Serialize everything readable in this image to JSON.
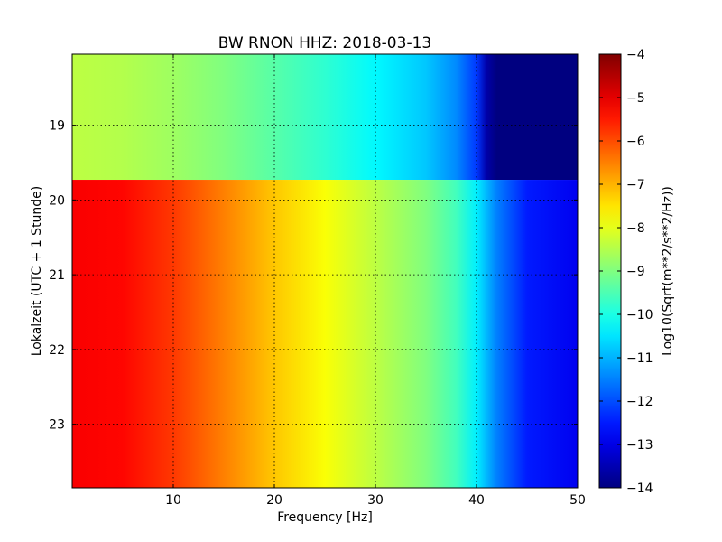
{
  "chart_data": {
    "type": "heatmap",
    "title": "BW RNON HHZ: 2018-03-13",
    "xlabel": "Frequency [Hz]",
    "ylabel": "Lokalzeit (UTC + 1 Stunde)",
    "xlim": [
      0,
      50
    ],
    "ylim": [
      23.85,
      18.05
    ],
    "x_ticks": [
      10,
      20,
      30,
      40,
      50
    ],
    "y_ticks": [
      19,
      20,
      21,
      22,
      23
    ],
    "grid": true,
    "colormap": "jet",
    "colorbar": {
      "label": "Log10(Sqrt(m**2/s**2/Hz))",
      "range": [
        -14,
        -4
      ],
      "ticks": [
        -4,
        -5,
        -6,
        -7,
        -8,
        -9,
        -10,
        -11,
        -12,
        -13,
        -14
      ],
      "tick_labels": [
        "−4",
        "−5",
        "−6",
        "−7",
        "−8",
        "−9",
        "−10",
        "−11",
        "−12",
        "−13",
        "−14"
      ]
    },
    "segments": [
      {
        "time_range": [
          18.05,
          19.73
        ],
        "frequency": [
          0,
          5,
          10,
          15,
          20,
          25,
          30,
          35,
          38,
          40,
          41,
          42,
          50
        ],
        "log10_psd": [
          -8.4,
          -8.5,
          -8.7,
          -9.0,
          -9.4,
          -9.8,
          -10.3,
          -10.8,
          -11.4,
          -12.2,
          -13.6,
          -14.0,
          -14.0
        ]
      },
      {
        "time_range": [
          19.73,
          23.85
        ],
        "frequency": [
          0,
          5,
          10,
          15,
          20,
          25,
          30,
          35,
          38,
          40,
          42,
          45,
          50
        ],
        "log10_psd": [
          -5.2,
          -5.3,
          -5.8,
          -6.5,
          -7.2,
          -7.8,
          -8.4,
          -9.0,
          -9.6,
          -10.4,
          -11.5,
          -12.5,
          -12.9
        ]
      }
    ]
  }
}
